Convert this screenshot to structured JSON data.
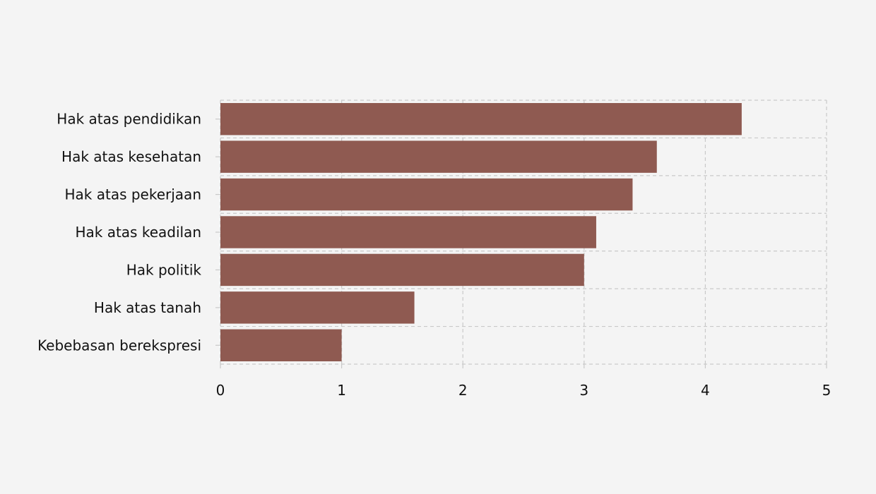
{
  "chart_data": {
    "type": "bar",
    "orientation": "horizontal",
    "categories": [
      "Hak atas pendidikan",
      "Hak atas kesehatan",
      "Hak atas pekerjaan",
      "Hak atas keadilan",
      "Hak politik",
      "Hak atas tanah",
      "Kebebasan berekspresi"
    ],
    "values": [
      4.3,
      3.6,
      3.4,
      3.1,
      3.0,
      1.6,
      1.0
    ],
    "xlim": [
      0,
      5
    ],
    "x_ticks": [
      "0",
      "1",
      "2",
      "3",
      "4",
      "5"
    ],
    "grid": true,
    "grid_style": "dashed",
    "bar_color": "#8f5a51",
    "grid_color": "#c9c9c9",
    "title": "",
    "xlabel": "",
    "ylabel": ""
  }
}
